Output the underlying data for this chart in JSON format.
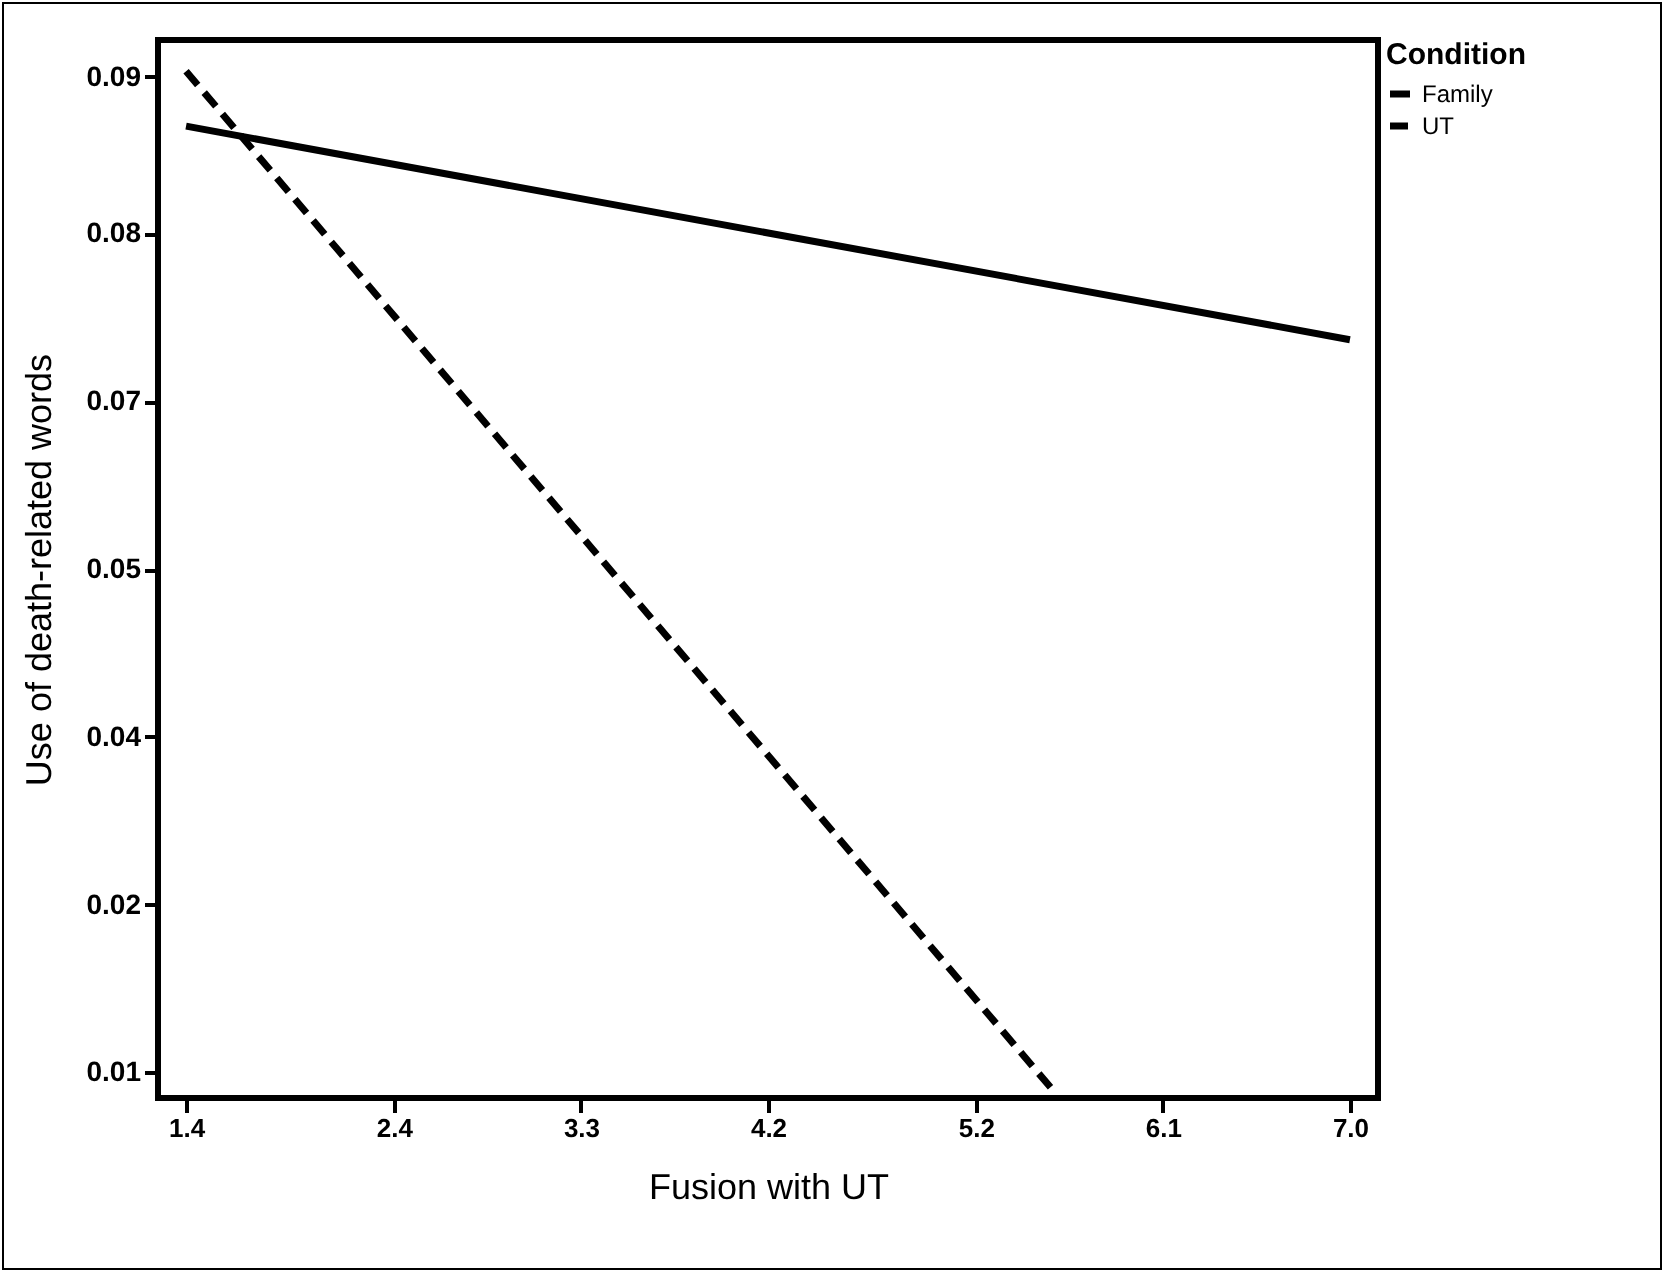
{
  "chart_data": {
    "type": "line",
    "xlabel": "Fusion with UT",
    "ylabel": "Use of death-related words",
    "legend_title": "Condition",
    "legend": "top right",
    "series": [
      {
        "name": "Family",
        "color": "#000000",
        "line_style": "solid",
        "x": [
          1.4,
          7.0
        ],
        "values": [
          0.0896,
          0.0705
        ]
      },
      {
        "name": "UT",
        "color": "#000000",
        "line_style": "dashed",
        "x": [
          1.4,
          5.58
        ],
        "values": [
          0.0945,
          0.0032
        ]
      }
    ],
    "xlim": [
      1.265,
      7.135
    ],
    "xticks": [
      {
        "value": 1.4,
        "label": "1.4"
      },
      {
        "value": 2.4,
        "label": "2.4"
      },
      {
        "value": 3.3,
        "label": "3.3"
      },
      {
        "value": 4.2,
        "label": "4.2"
      },
      {
        "value": 5.2,
        "label": "5.2"
      },
      {
        "value": 6.1,
        "label": "6.1"
      },
      {
        "value": 7.0,
        "label": "7.0"
      }
    ],
    "ylim": [
      0.0027,
      0.0973
    ],
    "yticks": [
      {
        "value": 0.005,
        "label": "0.01"
      },
      {
        "value": 0.02,
        "label": "0.02"
      },
      {
        "value": 0.035,
        "label": "0.04"
      },
      {
        "value": 0.05,
        "label": "0.05"
      },
      {
        "value": 0.065,
        "label": "0.07"
      },
      {
        "value": 0.08,
        "label": "0.08"
      },
      {
        "value": 0.094,
        "label": "0.09"
      }
    ],
    "grid": false,
    "marker": "none"
  }
}
